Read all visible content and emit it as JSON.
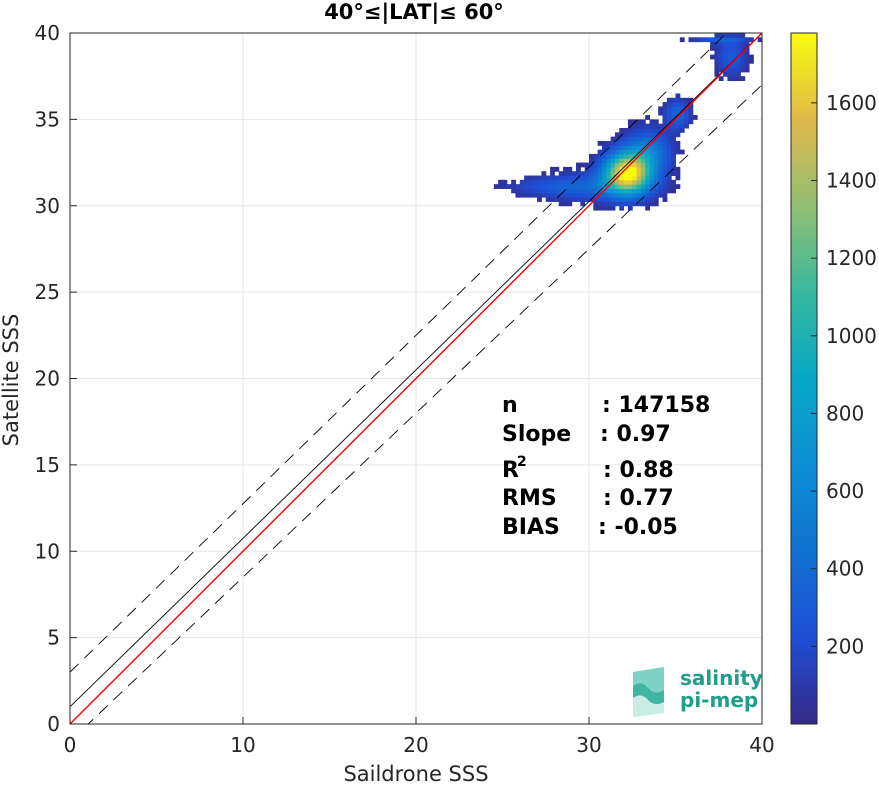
{
  "chart_data": {
    "type": "heatmap",
    "title": "40°≤|LAT|≤ 60°",
    "xlabel": "Saildrone SSS",
    "ylabel": "Satellite SSS",
    "xlim": [
      0,
      40
    ],
    "ylim": [
      0,
      40
    ],
    "xticks": [
      "0",
      "10",
      "20",
      "30",
      "40"
    ],
    "yticks": [
      "0",
      "5",
      "10",
      "15",
      "20",
      "25",
      "30",
      "35",
      "40"
    ],
    "grid": true,
    "colorbar": {
      "range": [
        0,
        1780
      ],
      "ticks": [
        "200",
        "400",
        "600",
        "800",
        "1000",
        "1200",
        "1400",
        "1600"
      ],
      "tick_values": [
        200,
        400,
        600,
        800,
        1000,
        1200,
        1400,
        1600
      ]
    },
    "lines": [
      {
        "name": "one-to-one",
        "color": "#000000",
        "x": [
          0,
          40
        ],
        "y": [
          1.0,
          40.0
        ],
        "style": "solid"
      },
      {
        "name": "regression",
        "color": "#ff0000",
        "x": [
          0,
          40
        ],
        "y": [
          0.0,
          40.0
        ],
        "style": "solid"
      },
      {
        "name": "upper-bound",
        "color": "#000000",
        "x": [
          0,
          40
        ],
        "y": [
          3.0,
          42.0
        ],
        "style": "dashed"
      },
      {
        "name": "lower-bound",
        "color": "#000000",
        "x": [
          0,
          40
        ],
        "y": [
          -1.0,
          37.0
        ],
        "style": "dashed"
      }
    ],
    "density_clusters": [
      {
        "x": 32.1,
        "y": 31.8,
        "sx": 0.9,
        "sy": 0.8,
        "peak": 1780
      },
      {
        "x": 33.3,
        "y": 33.0,
        "sx": 0.9,
        "sy": 0.9,
        "peak": 500
      },
      {
        "x": 30.3,
        "y": 31.0,
        "sx": 2.2,
        "sy": 0.6,
        "peak": 300
      },
      {
        "x": 35.0,
        "y": 35.2,
        "sx": 0.5,
        "sy": 0.6,
        "peak": 380
      },
      {
        "x": 38.1,
        "y": 38.5,
        "sx": 0.6,
        "sy": 0.8,
        "peak": 300
      },
      {
        "x": 37.5,
        "y": 39.5,
        "sx": 1.2,
        "sy": 0.15,
        "peak": 260
      },
      {
        "x": 27.5,
        "y": 31.0,
        "sx": 1.8,
        "sy": 0.35,
        "peak": 160
      }
    ],
    "stats": {
      "n_label": "n",
      "n_value": ": 147158",
      "slope_label": "Slope",
      "slope_value": ": 0.97",
      "r2_label": "R",
      "r2_sup": "2",
      "r2_value": ": 0.88",
      "rms_label": "RMS",
      "rms_value": ": 0.77",
      "bias_label": "BIAS",
      "bias_value": ": -0.05"
    }
  },
  "logo": {
    "line1": "salinity",
    "line2": "pi-mep",
    "color": "#1f9e8c"
  }
}
